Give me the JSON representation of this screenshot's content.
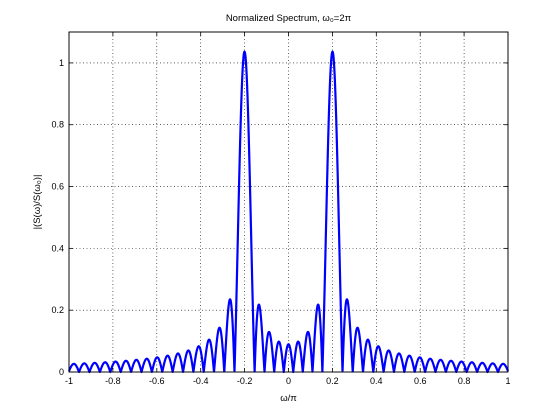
{
  "chart_data": {
    "type": "line",
    "title": "Normalized Spectrum, ω₀=2π",
    "xlabel": "ω/π",
    "ylabel": "|(S(ω)/S(ω₀)|",
    "xlim": [
      -1,
      1
    ],
    "ylim": [
      0,
      1.1
    ],
    "xticks": [
      -1,
      -0.8,
      -0.6,
      -0.4,
      -0.2,
      0,
      0.2,
      0.4,
      0.6,
      0.8,
      1
    ],
    "xtick_labels": [
      "-1",
      "-0.8",
      "-0.6",
      "-0.4",
      "-0.2",
      "0",
      "0.2",
      "0.4",
      "0.6",
      "0.8",
      "1"
    ],
    "yticks": [
      0,
      0.2,
      0.4,
      0.6,
      0.8,
      1
    ],
    "ytick_labels": [
      "0",
      "0.2",
      "0.4",
      "0.6",
      "0.8",
      "1"
    ],
    "grid": true,
    "series": [
      {
        "color": "#0000ff",
        "peak_positions": [
          -0.2,
          0.2
        ],
        "peak_value": 1.0,
        "sidelobe_spacing": 0.0476,
        "x": [
          -0.3,
          -0.25,
          -0.15,
          -0.1,
          -0.05,
          0,
          0.05,
          0.1,
          0.15,
          0.25,
          0.3
        ],
        "y": [
          0.12,
          0.18,
          0.26,
          0.2,
          0.16,
          0.15,
          0.16,
          0.2,
          0.26,
          0.18,
          0.12
        ]
      }
    ]
  }
}
